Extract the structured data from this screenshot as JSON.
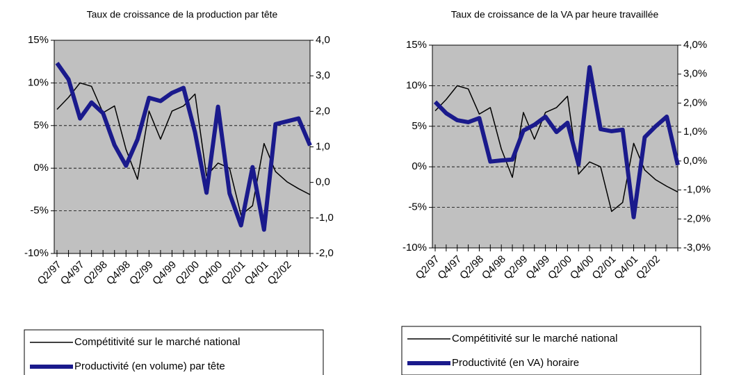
{
  "chart_data": [
    {
      "type": "line",
      "subtitle": "Taux de croissance de la production par tête",
      "categories": [
        "Q2/97",
        null,
        "Q4/97",
        null,
        "Q2/98",
        null,
        "Q4/98",
        null,
        "Q2/99",
        null,
        "Q4/99",
        null,
        "Q2/00",
        null,
        "Q4/00",
        null,
        "Q2/01",
        null,
        "Q4/01",
        null,
        "Q2/02",
        null,
        null
      ],
      "ylim": [
        -10,
        15
      ],
      "yticks": [
        {
          "value": -10,
          "label": "-10%"
        },
        {
          "value": -5,
          "label": "-5%"
        },
        {
          "value": 0,
          "label": "0%"
        },
        {
          "value": 5,
          "label": "5%"
        },
        {
          "value": 10,
          "label": "10%"
        },
        {
          "value": 15,
          "label": "15%"
        }
      ],
      "y2lim": [
        -2,
        4
      ],
      "y2ticks": [
        {
          "value": -2,
          "label": "-2,0"
        },
        {
          "value": -1,
          "label": "-1,0"
        },
        {
          "value": 0,
          "label": "0,0"
        },
        {
          "value": 1,
          "label": "1,0"
        },
        {
          "value": 2,
          "label": "2,0"
        },
        {
          "value": 3,
          "label": "3,0"
        },
        {
          "value": 4,
          "label": "4,0"
        }
      ],
      "grid": true,
      "series": [
        {
          "name": "Compétitivité sur le marché national",
          "color": "#000000",
          "values": [
            6.9,
            8.3,
            10.0,
            9.6,
            6.5,
            7.3,
            2.2,
            -1.3,
            6.7,
            3.4,
            6.7,
            7.3,
            8.7,
            -0.9,
            0.6,
            0.0,
            -5.5,
            -4.4,
            2.9,
            -0.4,
            -1.6,
            -2.4,
            -3.1
          ]
        },
        {
          "name": "Productivité (en volume) par tête",
          "color": "#1a1a8c",
          "axis": "y2",
          "values": [
            3.36,
            2.9,
            1.8,
            2.25,
            1.95,
            1.05,
            0.47,
            1.21,
            2.38,
            2.29,
            2.52,
            2.66,
            1.41,
            -0.29,
            2.13,
            -0.31,
            -1.21,
            0.43,
            -1.33,
            1.64,
            1.72,
            1.8,
            1.04
          ]
        }
      ]
    },
    {
      "type": "line",
      "subtitle": "Taux de croissance de la VA par heure travaillée",
      "categories": [
        "Q2/97",
        null,
        "Q4/97",
        null,
        "Q2/98",
        null,
        "Q4/98",
        null,
        "Q2/99",
        null,
        "Q4/99",
        null,
        "Q2/00",
        null,
        "Q4/00",
        null,
        "Q2/01",
        null,
        "Q4/01",
        null,
        "Q2/02",
        null,
        null
      ],
      "ylim": [
        -10,
        15
      ],
      "yticks": [
        {
          "value": -10,
          "label": "-10%"
        },
        {
          "value": -5,
          "label": "-5%"
        },
        {
          "value": 0,
          "label": "0%"
        },
        {
          "value": 5,
          "label": "5%"
        },
        {
          "value": 10,
          "label": "10%"
        },
        {
          "value": 15,
          "label": "15%"
        }
      ],
      "y2lim": [
        -3,
        4
      ],
      "y2ticks": [
        {
          "value": -3,
          "label": "-3,0%"
        },
        {
          "value": -2,
          "label": "-2,0%"
        },
        {
          "value": -1,
          "label": "-1,0%"
        },
        {
          "value": 0,
          "label": "0,0%"
        },
        {
          "value": 1,
          "label": "1,0%"
        },
        {
          "value": 2,
          "label": "2,0%"
        },
        {
          "value": 3,
          "label": "3,0%"
        },
        {
          "value": 4,
          "label": "4,0%"
        }
      ],
      "grid": true,
      "series": [
        {
          "name": "Compétitivité sur le marché national",
          "color": "#000000",
          "values": [
            6.9,
            8.3,
            10.0,
            9.6,
            6.5,
            7.3,
            2.2,
            -1.3,
            6.7,
            3.4,
            6.7,
            7.3,
            8.7,
            -0.9,
            0.6,
            0.0,
            -5.5,
            -4.4,
            2.9,
            -0.4,
            -1.6,
            -2.4,
            -3.1
          ]
        },
        {
          "name": "Productivité (en VA) horaire",
          "color": "#1a1a8c",
          "axis": "y2",
          "values": [
            2.04,
            1.65,
            1.41,
            1.34,
            1.48,
            -0.02,
            0.02,
            0.05,
            1.05,
            1.25,
            1.53,
            1.0,
            1.32,
            -0.12,
            3.24,
            1.1,
            1.03,
            1.08,
            -1.94,
            0.82,
            1.2,
            1.53,
            -0.14
          ]
        }
      ]
    }
  ]
}
